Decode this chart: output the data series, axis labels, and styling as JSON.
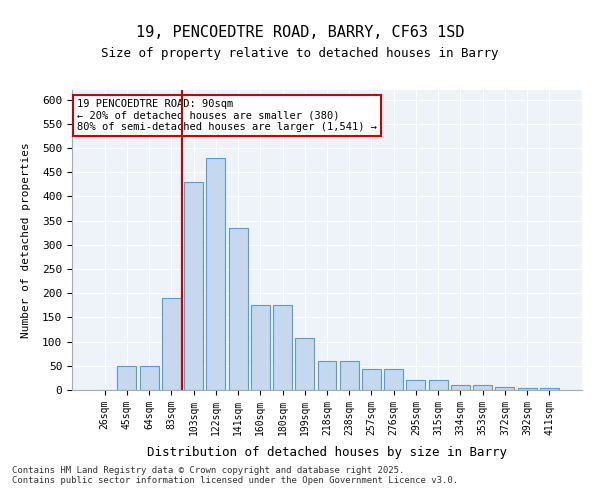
{
  "title1": "19, PENCOEDTRE ROAD, BARRY, CF63 1SD",
  "title2": "Size of property relative to detached houses in Barry",
  "xlabel": "Distribution of detached houses by size in Barry",
  "ylabel": "Number of detached properties",
  "categories": [
    "26sqm",
    "45sqm",
    "64sqm",
    "83sqm",
    "103sqm",
    "122sqm",
    "141sqm",
    "160sqm",
    "180sqm",
    "199sqm",
    "218sqm",
    "238sqm",
    "257sqm",
    "276sqm",
    "295sqm",
    "315sqm",
    "334sqm",
    "353sqm",
    "372sqm",
    "392sqm",
    "411sqm"
  ],
  "values": [
    1,
    50,
    50,
    190,
    430,
    480,
    335,
    175,
    175,
    108,
    60,
    60,
    43,
    43,
    20,
    20,
    10,
    10,
    7,
    5,
    5
  ],
  "bar_color": "#c5d8ed",
  "bar_edge_color": "#5b9bd5",
  "annotation_text": "19 PENCOEDTRE ROAD: 90sqm\n← 20% of detached houses are smaller (380)\n80% of semi-detached houses are larger (1,541) →",
  "vline_x": 3.5,
  "vline_color": "#cc0000",
  "annotation_box_color": "#cc0000",
  "ylim": [
    0,
    620
  ],
  "yticks": [
    0,
    50,
    100,
    150,
    200,
    250,
    300,
    350,
    400,
    450,
    500,
    550,
    600
  ],
  "footnote": "Contains HM Land Registry data © Crown copyright and database right 2025.\nContains public sector information licensed under the Open Government Licence v3.0.",
  "background_color": "#eef3f9",
  "fig_background": "#ffffff"
}
